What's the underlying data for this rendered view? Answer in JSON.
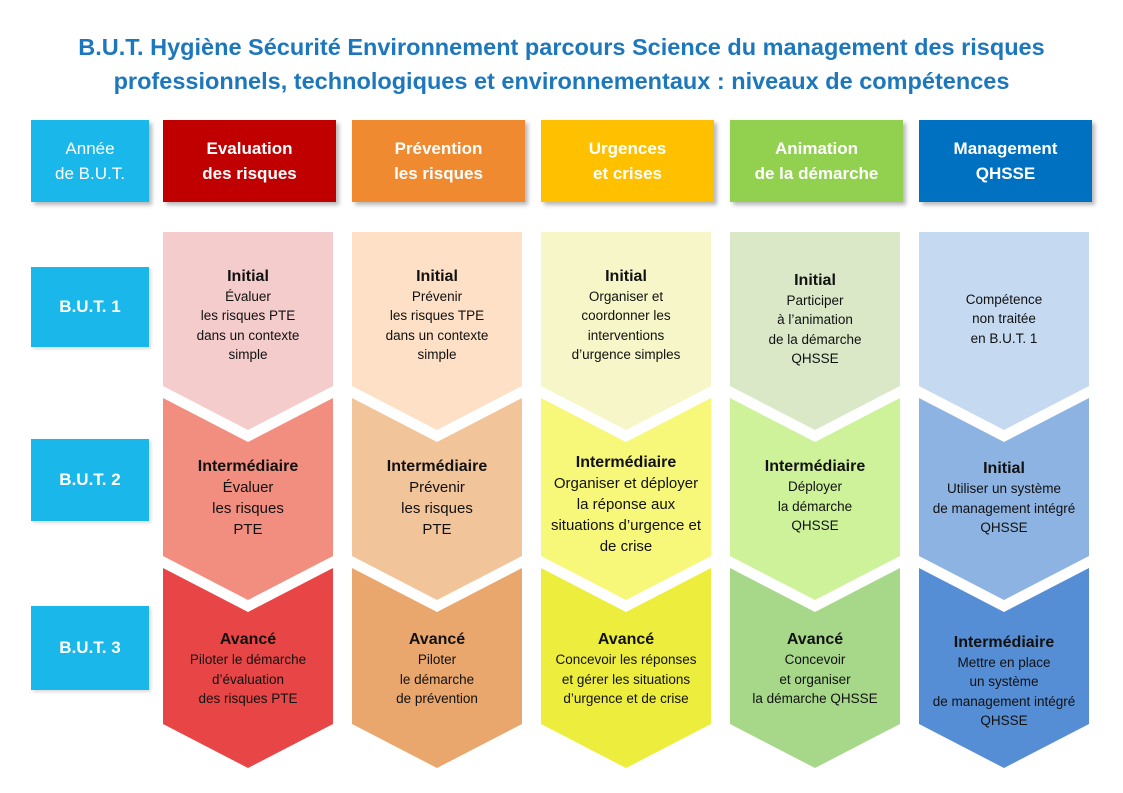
{
  "title": {
    "line1": "B.U.T. Hygiène Sécurité Environnement parcours Science du management des risques",
    "line2": "professionnels, technologiques et environnementaux : niveaux de compétences"
  },
  "year_header": "Année\nde B.U.T.",
  "columns": [
    {
      "label": "Evaluation\ndes risques",
      "color": "#c00000"
    },
    {
      "label": "Prévention\nles risques",
      "color": "#f08a30"
    },
    {
      "label": "Urgences\net crises",
      "color": "#ffc000"
    },
    {
      "label": "Animation\nde la démarche",
      "color": "#92d050"
    },
    {
      "label": "Management\nQHSSE",
      "color": "#0070c0"
    }
  ],
  "rows": [
    "B.U.T. 1",
    "B.U.T. 2",
    "B.U.T. 3"
  ],
  "cells": [
    [
      {
        "level": "Initial",
        "text": "Évaluer\nles risques PTE\ndans un contexte\nsimple",
        "fill": "#f4cccc"
      },
      {
        "level": "Intermédiaire",
        "text": "Évaluer\nles risques\nPTE",
        "fill": "#f28e7f"
      },
      {
        "level": "Avancé",
        "text": "Piloter le démarche\nd’évaluation\ndes risques PTE",
        "fill": "#e84646"
      }
    ],
    [
      {
        "level": "Initial",
        "text": "Prévenir\nles risques TPE\ndans un contexte\nsimple",
        "fill": "#fde0c5"
      },
      {
        "level": "Intermédiaire",
        "text": "Prévenir\nles risques\nPTE",
        "fill": "#f2c49a"
      },
      {
        "level": "Avancé",
        "text": "Piloter\nle démarche\nde prévention",
        "fill": "#e9a76d"
      }
    ],
    [
      {
        "level": "Initial",
        "text": "Organiser et\ncoordonner les\ninterventions\nd’urgence simples",
        "fill": "#f6f6c8"
      },
      {
        "level": "Intermédiaire",
        "text": "Organiser et déployer\nla réponse aux\nsituations d’urgence et\nde crise",
        "fill": "#f7f77a"
      },
      {
        "level": "Avancé",
        "text": "Concevoir les réponses\net gérer les situations\nd’urgence et de crise",
        "fill": "#eded3e"
      }
    ],
    [
      {
        "level": "Initial",
        "text": "Participer\nà l’animation\nde la démarche\nQHSSE",
        "fill": "#dae8c8"
      },
      {
        "level": "Intermédiaire",
        "text": "Déployer\nla démarche\nQHSSE",
        "fill": "#cdf29a"
      },
      {
        "level": "Avancé",
        "text": "Concevoir\net organiser\nla démarche QHSSE",
        "fill": "#a7d88a"
      }
    ],
    [
      {
        "level": "",
        "text": "Compétence\nnon traitée\nen B.U.T. 1",
        "fill": "#c5d9f1"
      },
      {
        "level": "Initial",
        "text": "Utiliser un système\nde management intégré\nQHSSE",
        "fill": "#8db3e2"
      },
      {
        "level": "Intermédiaire",
        "text": "Mettre en place\nun système\nde management intégré\nQHSSE",
        "fill": "#558ed5"
      }
    ]
  ]
}
